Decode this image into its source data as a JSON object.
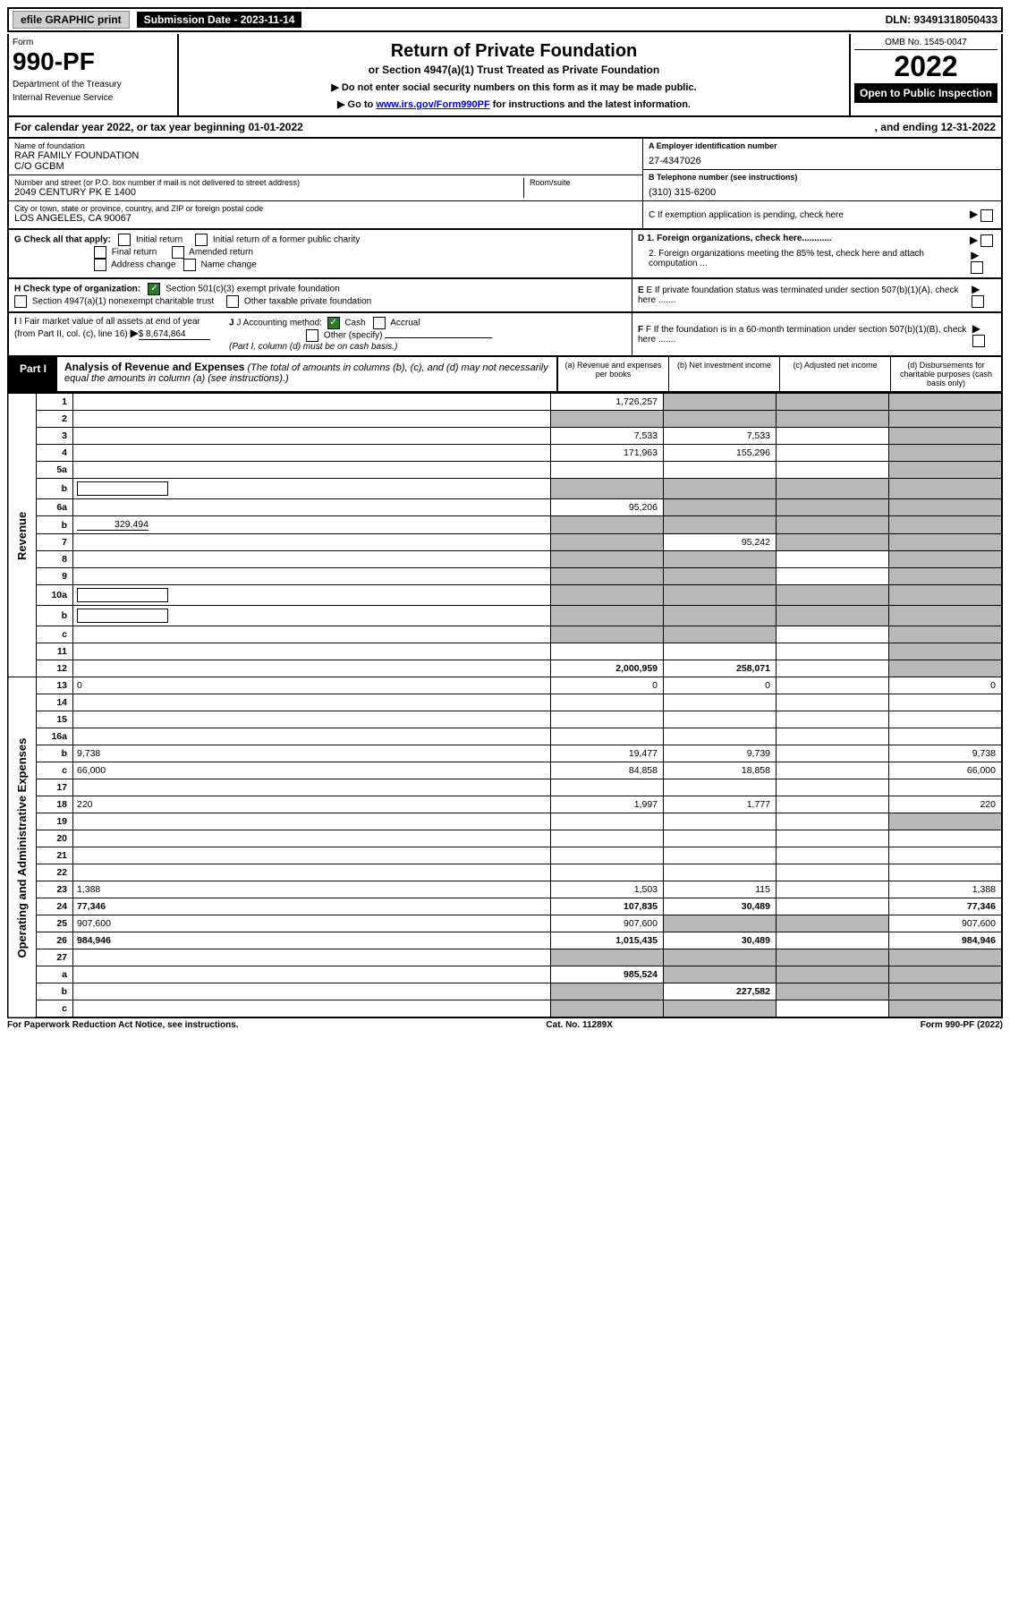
{
  "top": {
    "efile": "efile GRAPHIC print",
    "submission": "Submission Date - 2023-11-14",
    "dln": "DLN: 93491318050433"
  },
  "header": {
    "form_label": "Form",
    "form_number": "990-PF",
    "dept1": "Department of the Treasury",
    "dept2": "Internal Revenue Service",
    "title": "Return of Private Foundation",
    "subtitle": "or Section 4947(a)(1) Trust Treated as Private Foundation",
    "instr1": "▶ Do not enter social security numbers on this form as it may be made public.",
    "instr2_pre": "▶ Go to ",
    "instr2_link": "www.irs.gov/Form990PF",
    "instr2_post": " for instructions and the latest information.",
    "omb": "OMB No. 1545-0047",
    "year": "2022",
    "open": "Open to Public Inspection"
  },
  "calendar": {
    "left": "For calendar year 2022, or tax year beginning 01-01-2022",
    "right": ", and ending 12-31-2022"
  },
  "info": {
    "name_label": "Name of foundation",
    "name1": "RAR FAMILY FOUNDATION",
    "name2": "C/O GCBM",
    "street_label": "Number and street (or P.O. box number if mail is not delivered to street address)",
    "street": "2049 CENTURY PK E 1400",
    "room_label": "Room/suite",
    "city_label": "City or town, state or province, country, and ZIP or foreign postal code",
    "city": "LOS ANGELES, CA  90067",
    "ein_label": "A Employer identification number",
    "ein": "27-4347026",
    "phone_label": "B Telephone number (see instructions)",
    "phone": "(310) 315-6200",
    "c_label": "C If exemption application is pending, check here",
    "d1": "D 1. Foreign organizations, check here............",
    "d2": "2. Foreign organizations meeting the 85% test, check here and attach computation ...",
    "e_label": "E If private foundation status was terminated under section 507(b)(1)(A), check here .......",
    "f_label": "F If the foundation is in a 60-month termination under section 507(b)(1)(B), check here .......",
    "g_label": "G Check all that apply:",
    "g_opts": [
      "Initial return",
      "Initial return of a former public charity",
      "Final return",
      "Amended return",
      "Address change",
      "Name change"
    ],
    "h_label": "H Check type of organization:",
    "h_opt1": "Section 501(c)(3) exempt private foundation",
    "h_opt2": "Section 4947(a)(1) nonexempt charitable trust",
    "h_opt3": "Other taxable private foundation",
    "i_label": "I Fair market value of all assets at end of year (from Part II, col. (c), line 16)",
    "i_value": "$  8,674,864",
    "j_label": "J Accounting method:",
    "j_cash": "Cash",
    "j_accrual": "Accrual",
    "j_other": "Other (specify)",
    "j_note": "(Part I, column (d) must be on cash basis.)"
  },
  "part1": {
    "badge": "Part I",
    "title": "Analysis of Revenue and Expenses",
    "title_note": "(The total of amounts in columns (b), (c), and (d) may not necessarily equal the amounts in column (a) (see instructions).)",
    "col_a": "(a) Revenue and expenses per books",
    "col_b": "(b) Net investment income",
    "col_c": "(c) Adjusted net income",
    "col_d": "(d) Disbursements for charitable purposes (cash basis only)"
  },
  "sections": {
    "revenue": "Revenue",
    "expenses": "Operating and Administrative Expenses"
  },
  "rows": [
    {
      "n": "1",
      "d": "",
      "a": "1,726,257",
      "b": "",
      "c": "",
      "shade_b": true,
      "shade_c": true,
      "shade_d": true
    },
    {
      "n": "2",
      "d": "",
      "a": "",
      "b": "",
      "c": "",
      "shade_a": true,
      "shade_b": true,
      "shade_c": true,
      "shade_d": true
    },
    {
      "n": "3",
      "d": "",
      "a": "7,533",
      "b": "7,533",
      "c": "",
      "shade_d": true
    },
    {
      "n": "4",
      "d": "",
      "a": "171,963",
      "b": "155,296",
      "c": "",
      "shade_d": true
    },
    {
      "n": "5a",
      "d": "",
      "a": "",
      "b": "",
      "c": "",
      "shade_d": true
    },
    {
      "n": "b",
      "d": "",
      "a": "",
      "b": "",
      "c": "",
      "shade_a": true,
      "shade_b": true,
      "shade_c": true,
      "shade_d": true,
      "inline": true
    },
    {
      "n": "6a",
      "d": "",
      "a": "95,206",
      "b": "",
      "c": "",
      "shade_b": true,
      "shade_c": true,
      "shade_d": true
    },
    {
      "n": "b",
      "d": "",
      "a": "",
      "b": "",
      "c": "",
      "shade_a": true,
      "shade_b": true,
      "shade_c": true,
      "shade_d": true,
      "inline_val": "329,494"
    },
    {
      "n": "7",
      "d": "",
      "a": "",
      "b": "95,242",
      "c": "",
      "shade_a": true,
      "shade_c": true,
      "shade_d": true
    },
    {
      "n": "8",
      "d": "",
      "a": "",
      "b": "",
      "c": "",
      "shade_a": true,
      "shade_b": true,
      "shade_d": true
    },
    {
      "n": "9",
      "d": "",
      "a": "",
      "b": "",
      "c": "",
      "shade_a": true,
      "shade_b": true,
      "shade_d": true
    },
    {
      "n": "10a",
      "d": "",
      "a": "",
      "b": "",
      "c": "",
      "shade_a": true,
      "shade_b": true,
      "shade_c": true,
      "shade_d": true,
      "inline": true
    },
    {
      "n": "b",
      "d": "",
      "a": "",
      "b": "",
      "c": "",
      "shade_a": true,
      "shade_b": true,
      "shade_c": true,
      "shade_d": true,
      "inline": true
    },
    {
      "n": "c",
      "d": "",
      "a": "",
      "b": "",
      "c": "",
      "shade_a": true,
      "shade_b": true,
      "shade_d": true
    },
    {
      "n": "11",
      "d": "",
      "a": "",
      "b": "",
      "c": "",
      "shade_d": true
    },
    {
      "n": "12",
      "d": "",
      "a": "2,000,959",
      "b": "258,071",
      "c": "",
      "shade_d": true,
      "bold": true
    }
  ],
  "exp_rows": [
    {
      "n": "13",
      "d": "0",
      "a": "0",
      "b": "0",
      "c": ""
    },
    {
      "n": "14",
      "d": "",
      "a": "",
      "b": "",
      "c": ""
    },
    {
      "n": "15",
      "d": "",
      "a": "",
      "b": "",
      "c": ""
    },
    {
      "n": "16a",
      "d": "",
      "a": "",
      "b": "",
      "c": ""
    },
    {
      "n": "b",
      "d": "9,738",
      "a": "19,477",
      "b": "9,739",
      "c": ""
    },
    {
      "n": "c",
      "d": "66,000",
      "a": "84,858",
      "b": "18,858",
      "c": ""
    },
    {
      "n": "17",
      "d": "",
      "a": "",
      "b": "",
      "c": ""
    },
    {
      "n": "18",
      "d": "220",
      "a": "1,997",
      "b": "1,777",
      "c": ""
    },
    {
      "n": "19",
      "d": "",
      "a": "",
      "b": "",
      "c": "",
      "shade_d": true
    },
    {
      "n": "20",
      "d": "",
      "a": "",
      "b": "",
      "c": ""
    },
    {
      "n": "21",
      "d": "",
      "a": "",
      "b": "",
      "c": ""
    },
    {
      "n": "22",
      "d": "",
      "a": "",
      "b": "",
      "c": ""
    },
    {
      "n": "23",
      "d": "1,388",
      "a": "1,503",
      "b": "115",
      "c": ""
    },
    {
      "n": "24",
      "d": "77,346",
      "a": "107,835",
      "b": "30,489",
      "c": "",
      "bold": true
    },
    {
      "n": "25",
      "d": "907,600",
      "a": "907,600",
      "b": "",
      "c": "",
      "shade_b": true,
      "shade_c": true
    },
    {
      "n": "26",
      "d": "984,946",
      "a": "1,015,435",
      "b": "30,489",
      "c": "",
      "bold": true
    },
    {
      "n": "27",
      "d": "",
      "a": "",
      "b": "",
      "c": "",
      "shade_a": true,
      "shade_b": true,
      "shade_c": true,
      "shade_d": true
    },
    {
      "n": "a",
      "d": "",
      "a": "985,524",
      "b": "",
      "c": "",
      "shade_b": true,
      "shade_c": true,
      "shade_d": true,
      "bold": true
    },
    {
      "n": "b",
      "d": "",
      "a": "",
      "b": "227,582",
      "c": "",
      "shade_a": true,
      "shade_c": true,
      "shade_d": true,
      "bold": true
    },
    {
      "n": "c",
      "d": "",
      "a": "",
      "b": "",
      "c": "",
      "shade_a": true,
      "shade_b": true,
      "shade_d": true,
      "bold": true
    }
  ],
  "footer": {
    "left": "For Paperwork Reduction Act Notice, see instructions.",
    "center": "Cat. No. 11289X",
    "right": "Form 990-PF (2022)"
  },
  "colors": {
    "shaded": "#b8b8b8",
    "link": "#0000cc",
    "check": "#2a7a2a"
  }
}
